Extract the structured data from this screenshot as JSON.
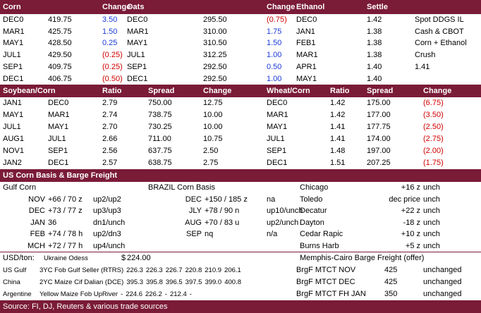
{
  "prices": {
    "header": [
      "Corn",
      "Change",
      "Oats",
      "Change",
      "Ethanol",
      "Settle"
    ],
    "rows": [
      [
        "DEC0",
        "419.75",
        "3.50",
        "DEC0",
        "295.50",
        "(0.75)",
        "DEC0",
        "1.42",
        "Spot DDGS IL"
      ],
      [
        "MAR1",
        "425.75",
        "1.50",
        "MAR1",
        "310.00",
        "1.75",
        "JAN1",
        "1.38",
        "Cash & CBOT"
      ],
      [
        "MAY1",
        "428.50",
        "0.25",
        "MAY1",
        "310.50",
        "1.50",
        "FEB1",
        "1.38",
        "Corn + Ethanol"
      ],
      [
        "JUL1",
        "429.50",
        "(0.25)",
        "JUL1",
        "312.25",
        "1.00",
        "MAR1",
        "1.38",
        "Crush"
      ],
      [
        "SEP1",
        "409.75",
        "(0.25)",
        "SEP1",
        "292.50",
        "0.50",
        "APR1",
        "1.40",
        "1.41"
      ],
      [
        "DEC1",
        "406.75",
        "(0.50)",
        "DEC1",
        "292.50",
        "1.00",
        "MAY1",
        "1.40"
      ]
    ]
  },
  "spreads": {
    "header": [
      "Soybean/Corn",
      "Ratio",
      "Spread",
      "Change",
      "Wheat/Corn",
      "Ratio",
      "Spread",
      "Change"
    ],
    "rows": [
      [
        "JAN1",
        "DEC0",
        "2.79",
        "750.00",
        "12.75",
        "DEC0",
        "1.42",
        "175.00",
        "(6.75)"
      ],
      [
        "MAY1",
        "MAR1",
        "2.74",
        "738.75",
        "10.00",
        "MAR1",
        "1.42",
        "177.00",
        "(3.50)"
      ],
      [
        "JUL1",
        "MAY1",
        "2.70",
        "730.25",
        "10.00",
        "MAY1",
        "1.41",
        "177.75",
        "(2.50)"
      ],
      [
        "AUG1",
        "JUL1",
        "2.66",
        "711.00",
        "10.75",
        "JUL1",
        "1.41",
        "174.00",
        "(2.75)"
      ],
      [
        "NOV1",
        "SEP1",
        "2.56",
        "637.75",
        "2.50",
        "SEP1",
        "1.48",
        "197.00",
        "(2.00)"
      ],
      [
        "JAN2",
        "DEC1",
        "2.57",
        "638.75",
        "2.75",
        "DEC1",
        "1.51",
        "207.25",
        "(1.75)"
      ]
    ]
  },
  "basis": {
    "title": "US Corn Basis & Barge Freight",
    "rows": [
      {
        "gulf": [
          "Gulf Corn"
        ],
        "brazil": [
          "BRAZIL Corn Basis"
        ],
        "us": [
          "Chicago",
          "+16 z",
          "unch"
        ]
      },
      {
        "gulf": [
          "NOV",
          "+66 / 70 z",
          "up2/up2"
        ],
        "brazil": [
          "DEC",
          "+150 / 185 z",
          "na"
        ],
        "us": [
          "Toledo",
          "dec price",
          "unch"
        ]
      },
      {
        "gulf": [
          "DEC",
          "+73 / 77 z",
          "up3/up3"
        ],
        "brazil": [
          "JLY",
          "+78 / 90 n",
          "up10/unch"
        ],
        "us": [
          "Decatur",
          "+22 z",
          "unch"
        ]
      },
      {
        "gulf": [
          "JAN",
          "36",
          "dn1/unch"
        ],
        "brazil": [
          "AUG",
          "+70 / 83 u",
          "up2/unch"
        ],
        "us": [
          "Dayton",
          "-18 z",
          "unch"
        ]
      },
      {
        "gulf": [
          "FEB",
          "+74 / 78 h",
          "up2/dn3"
        ],
        "brazil": [
          "SEP",
          "nq",
          "n/a"
        ],
        "us": [
          "Cedar Rapic",
          "+10 z",
          "unch"
        ]
      },
      {
        "gulf": [
          "MCH",
          "+72 / 77 h",
          "up4/unch"
        ],
        "us": [
          "Burns Harb",
          "+5 z",
          "unch"
        ]
      }
    ]
  },
  "usd_ton": {
    "header": [
      "USD/ton:",
      "Ukraine Odess",
      "$",
      "224.00"
    ],
    "rows": [
      {
        "origin": "US Gulf",
        "product": "3YC Fob Gulf Seller (RTRS)",
        "values": [
          "226.3",
          "226.3",
          "226.7",
          "220.8",
          "210.9",
          "206.1"
        ]
      },
      {
        "origin": "China",
        "product": "2YC Maize Cif Dalian (DCE)",
        "values": [
          "395.3",
          "395.8",
          "396.5",
          "397.5",
          "399.0",
          "400.8"
        ]
      },
      {
        "origin": "Argentine",
        "product": "Yellow Maize Fob UpRiver",
        "values": [
          "-",
          "224.6",
          "226.2",
          "-",
          "212.4",
          "-"
        ]
      }
    ]
  },
  "barge": {
    "title": "Memphis-Cairo Barge Freight (offer)",
    "rows": [
      [
        "BrgF MTCT NOV",
        "425",
        "unchanged"
      ],
      [
        "BrgF MTCT DEC",
        "425",
        "unchanged"
      ],
      [
        "BrgF MTCT FH JAN",
        "350",
        "unchanged"
      ]
    ]
  },
  "footer": "Source: FI, DJ, Reuters & various trade sources"
}
